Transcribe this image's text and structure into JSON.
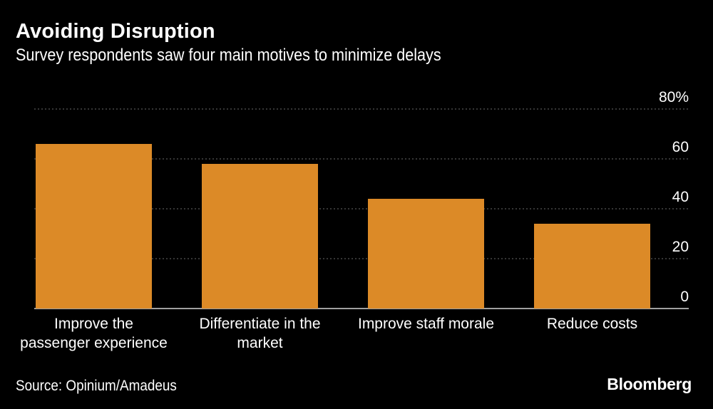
{
  "header": {
    "title": "Avoiding Disruption",
    "subtitle": "Survey respondents saw four main motives to minimize delays"
  },
  "footer": {
    "source": "Source: Opinium/Amadeus",
    "brand": "Bloomberg"
  },
  "colors": {
    "background": "#000000",
    "bar": "#DC8A27",
    "text": "#FFFFFF",
    "grid": "#6B6B6B"
  },
  "chart_data": {
    "type": "bar",
    "categories": [
      [
        "Improve the",
        "passenger experience"
      ],
      [
        "Differentiate in the",
        "market"
      ],
      [
        "Improve staff morale"
      ],
      [
        "Reduce costs"
      ]
    ],
    "values": [
      66,
      58,
      44,
      34
    ],
    "title": "Avoiding Disruption",
    "subtitle": "Survey respondents saw four main motives to minimize delays",
    "xlabel": "",
    "ylabel": "",
    "ylim": [
      0,
      80
    ],
    "yticks": [
      0,
      20,
      40,
      60,
      80
    ],
    "ytick_labels": [
      "0",
      "20",
      "40",
      "60",
      "80%"
    ],
    "y_axis_side": "right",
    "grid": true,
    "grid_style": "dotted",
    "legend": "none"
  }
}
